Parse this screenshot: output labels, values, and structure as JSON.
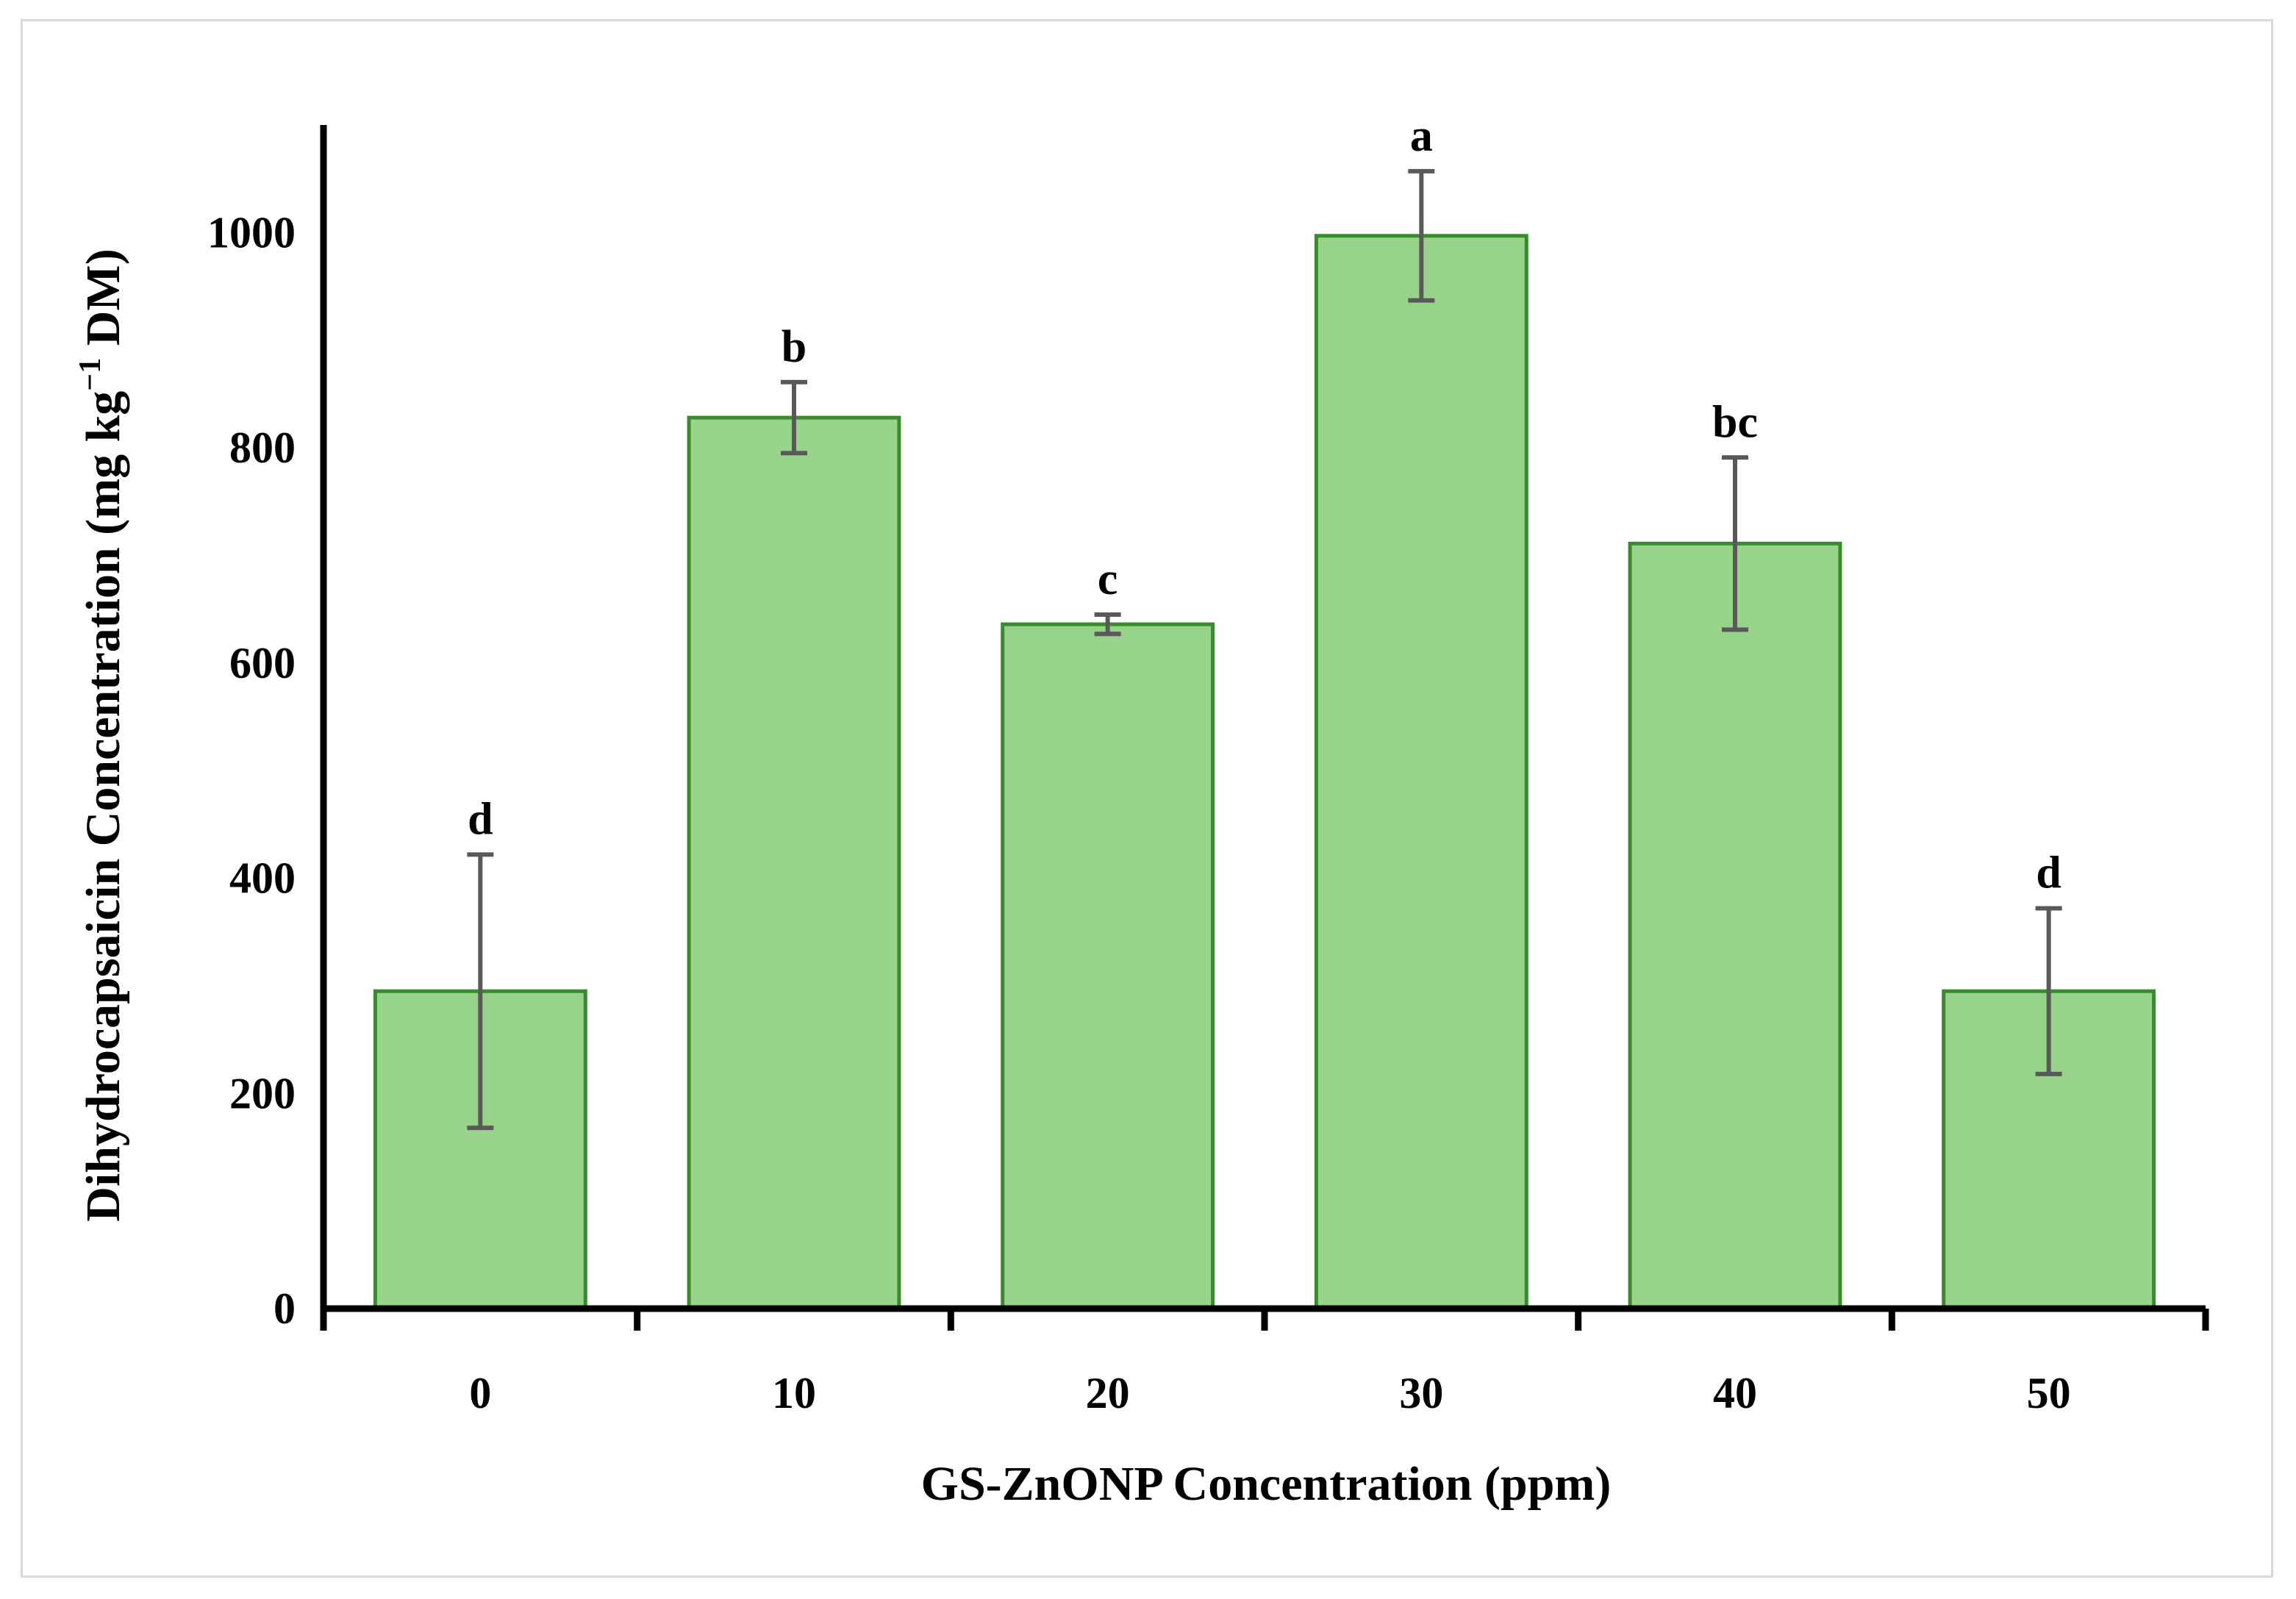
{
  "chart_data": {
    "type": "bar",
    "categories": [
      "0",
      "10",
      "20",
      "30",
      "40",
      "50"
    ],
    "values": [
      295,
      828,
      636,
      997,
      711,
      295
    ],
    "errors": [
      127,
      33,
      9,
      60,
      80,
      77
    ],
    "significance_letters": [
      "d",
      "b",
      "c",
      "a",
      "bc",
      "d"
    ],
    "xlabel": "GS-ZnONP Concentration (ppm)",
    "ylabel": {
      "before": "Dihydrocapsaicin Concentration (mg kg",
      "superscript": "−1",
      "after": " DM)"
    },
    "ylim": [
      0,
      1100
    ],
    "yticks": [
      0,
      200,
      400,
      600,
      800,
      1000
    ],
    "grid": false,
    "legend": "none"
  },
  "colors": {
    "bar_fill": "#98d38a",
    "bar_stroke": "#3a8a2e",
    "error_bar": "#595959",
    "axis": "#000000",
    "frame": "#d9d9d9"
  }
}
